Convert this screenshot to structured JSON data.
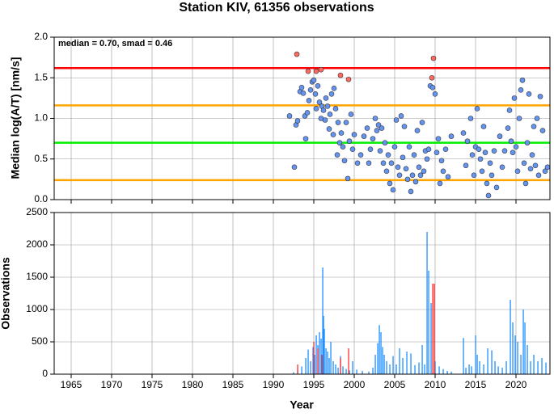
{
  "chart_data": [
    {
      "type": "scatter",
      "title": "Station KIV, 61356 observations",
      "ylabel": "Median log(A/T) [nm/s]",
      "annotation": "median = 0.70, smad = 0.46",
      "xlim": [
        1962.9,
        2024.2
      ],
      "xticks": [
        1965,
        1970,
        1975,
        1980,
        1985,
        1990,
        1995,
        2000,
        2005,
        2010,
        2015,
        2020
      ],
      "ylim": [
        0,
        2
      ],
      "yticks": [
        {
          "value": 0,
          "label": "0.0"
        },
        {
          "value": 0.5,
          "label": "0.5"
        },
        {
          "value": 1,
          "label": "1.0"
        },
        {
          "value": 1.5,
          "label": "1.5"
        },
        {
          "value": 2,
          "label": "2.0"
        }
      ],
      "grid": true,
      "hlines": [
        {
          "value": 1.62,
          "color": "#ff0000"
        },
        {
          "value": 1.16,
          "color": "#ffa500"
        },
        {
          "value": 0.7,
          "color": "#00ee00"
        },
        {
          "value": 0.24,
          "color": "#ffa500"
        }
      ],
      "series": [
        {
          "color": "#6495ed",
          "x": [
            1992.0,
            1992.6,
            1992.8,
            1993.0,
            1993.3,
            1993.5,
            1993.7,
            1993.9,
            1994.0,
            1994.2,
            1994.4,
            1994.6,
            1994.8,
            1995.0,
            1995.2,
            1995.3,
            1995.5,
            1995.7,
            1995.9,
            1996.0,
            1996.2,
            1996.4,
            1996.5,
            1996.7,
            1996.9,
            1997.0,
            1997.2,
            1997.4,
            1997.5,
            1997.7,
            1997.9,
            1998.0,
            1998.2,
            1998.4,
            1998.6,
            1998.8,
            1999.0,
            1999.2,
            1999.4,
            1999.6,
            1999.8,
            2000.0,
            2000.4,
            2000.8,
            2001.2,
            2001.6,
            2001.8,
            2002.0,
            2002.3,
            2002.6,
            2002.8,
            2003.0,
            2003.2,
            2003.4,
            2003.6,
            2003.8,
            2004.0,
            2004.2,
            2004.4,
            2004.6,
            2004.8,
            2005.0,
            2005.2,
            2005.4,
            2005.6,
            2005.8,
            2006.0,
            2006.2,
            2006.4,
            2006.6,
            2006.8,
            2007.0,
            2007.2,
            2007.4,
            2007.6,
            2007.8,
            2008.0,
            2008.2,
            2008.4,
            2008.6,
            2008.8,
            2009.0,
            2009.2,
            2009.4,
            2009.7,
            2010.0,
            2010.2,
            2010.4,
            2010.6,
            2010.8,
            2011.0,
            2011.3,
            2011.6,
            2012.0,
            2013.5,
            2013.8,
            2014.0,
            2014.4,
            2014.6,
            2014.8,
            2015.0,
            2015.2,
            2015.4,
            2015.6,
            2015.8,
            2016.0,
            2016.2,
            2016.4,
            2016.6,
            2016.8,
            2017.0,
            2017.3,
            2017.6,
            2018.0,
            2018.3,
            2018.6,
            2019.0,
            2019.2,
            2019.4,
            2019.6,
            2019.8,
            2020.0,
            2020.2,
            2020.4,
            2020.6,
            2020.8,
            2021.0,
            2021.2,
            2021.4,
            2021.6,
            2021.8,
            2022.0,
            2022.2,
            2022.4,
            2022.6,
            2022.8,
            2023.0,
            2023.3,
            2023.6,
            2023.9
          ],
          "values": [
            1.03,
            0.4,
            0.92,
            0.97,
            1.33,
            1.38,
            1.31,
            1.03,
            0.75,
            1.07,
            1.22,
            1.35,
            1.45,
            1.47,
            1.3,
            1.12,
            1.4,
            1.2,
            1.0,
            1.15,
            1.1,
            0.98,
            1.25,
            1.15,
            0.87,
            1.05,
            1.3,
            0.8,
            1.37,
            1.12,
            0.55,
            0.95,
            0.7,
            0.82,
            0.65,
            0.48,
            0.95,
            0.26,
            0.72,
            1.05,
            0.62,
            0.8,
            0.45,
            0.55,
            0.78,
            0.88,
            0.45,
            0.62,
            0.75,
            1.0,
            0.85,
            0.92,
            0.6,
            0.88,
            0.45,
            0.7,
            0.35,
            0.55,
            0.2,
            0.45,
            0.12,
            0.65,
            0.98,
            0.4,
            0.3,
            1.03,
            0.52,
            0.9,
            0.38,
            0.25,
            0.65,
            0.1,
            0.3,
            0.55,
            0.22,
            0.85,
            0.4,
            0.3,
            0.95,
            0.35,
            0.6,
            0.5,
            0.62,
            1.4,
            1.38,
            1.3,
            0.58,
            0.75,
            0.2,
            0.48,
            0.35,
            0.62,
            0.28,
            0.78,
            0.82,
            0.42,
            0.72,
            1.0,
            0.55,
            0.3,
            0.65,
            1.12,
            0.62,
            0.5,
            0.35,
            0.9,
            0.58,
            0.2,
            0.05,
            0.45,
            0.3,
            0.6,
            0.15,
            0.78,
            0.4,
            0.6,
            0.88,
            1.1,
            0.72,
            0.58,
            1.25,
            0.65,
            0.35,
            1.0,
            1.35,
            1.47,
            0.45,
            0.2,
            0.7,
            1.3,
            0.38,
            0.55,
            0.9,
            0.42,
            1.0,
            0.3,
            1.27,
            0.85,
            0.35,
            0.4
          ]
        },
        {
          "color": "#ff6a5a",
          "x": [
            1992.9,
            1994.3,
            1995.3,
            1995.9,
            1998.3,
            1999.3,
            2009.6,
            2009.8
          ],
          "values": [
            1.79,
            1.58,
            1.58,
            1.6,
            1.53,
            1.48,
            1.5,
            1.74
          ]
        }
      ]
    },
    {
      "type": "bar",
      "xlabel": "Year",
      "ylabel": "Observations",
      "xlim": [
        1962.9,
        2024.2
      ],
      "xticks": [
        1965,
        1970,
        1975,
        1980,
        1985,
        1990,
        1995,
        2000,
        2005,
        2010,
        2015,
        2020
      ],
      "ylim": [
        0,
        2500
      ],
      "yticks": [
        0,
        500,
        1000,
        1500,
        2000,
        2500
      ],
      "grid": true,
      "series": [
        {
          "color": "#1e90ff",
          "x": [
            1992.5,
            1993.0,
            1993.5,
            1994.0,
            1994.3,
            1994.6,
            1994.9,
            1995.1,
            1995.3,
            1995.5,
            1995.7,
            1995.9,
            1996.1,
            1996.2,
            1996.3,
            1996.5,
            1996.7,
            1996.9,
            1997.1,
            1997.4,
            1997.7,
            1998.0,
            1998.3,
            1998.6,
            1999.0,
            1999.4,
            1999.8,
            2000.3,
            2001.0,
            2001.8,
            2002.3,
            2002.6,
            2002.9,
            2003.1,
            2003.3,
            2003.5,
            2003.7,
            2004.0,
            2004.4,
            2004.8,
            2005.2,
            2005.6,
            2006.0,
            2006.5,
            2007.0,
            2007.5,
            2008.0,
            2008.4,
            2008.7,
            2009.0,
            2009.2,
            2009.5,
            2010.0,
            2010.5,
            2011.0,
            2011.5,
            2012.0,
            2013.5,
            2013.8,
            2014.2,
            2014.5,
            2015.0,
            2015.2,
            2015.5,
            2016.0,
            2016.5,
            2017.0,
            2017.4,
            2017.8,
            2018.3,
            2018.8,
            2019.3,
            2019.6,
            2019.9,
            2020.2,
            2020.6,
            2020.9,
            2021.1,
            2021.4,
            2021.8,
            2022.2,
            2022.7,
            2023.2,
            2023.7
          ],
          "values": [
            30,
            60,
            120,
            250,
            380,
            200,
            420,
            300,
            600,
            450,
            650,
            550,
            1650,
            900,
            700,
            400,
            350,
            250,
            500,
            200,
            150,
            100,
            280,
            120,
            80,
            60,
            200,
            70,
            50,
            40,
            100,
            300,
            480,
            760,
            650,
            420,
            300,
            200,
            150,
            280,
            150,
            400,
            250,
            350,
            320,
            140,
            180,
            450,
            150,
            2200,
            1600,
            1100,
            200,
            120,
            80,
            50,
            40,
            560,
            100,
            150,
            120,
            600,
            300,
            200,
            150,
            400,
            370,
            200,
            120,
            100,
            200,
            1150,
            800,
            600,
            500,
            300,
            1000,
            800,
            450,
            200,
            300,
            200,
            250,
            180
          ]
        },
        {
          "color": "#ff3030",
          "x": [
            1993.0,
            1995.0,
            1995.5,
            1996.0,
            1998.3,
            1999.3,
            2009.7,
            2009.9
          ],
          "values": [
            150,
            500,
            400,
            300,
            250,
            400,
            1400,
            1400
          ]
        }
      ]
    }
  ]
}
